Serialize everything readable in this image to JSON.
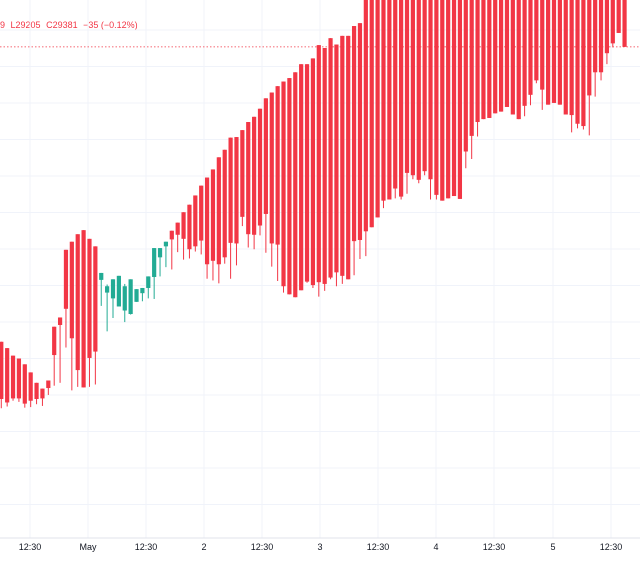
{
  "chart_data": {
    "type": "candlestick",
    "legend": {
      "open_partial": "9",
      "low": "L29205",
      "close": "C29381",
      "change": "−35 (−0.12%)"
    },
    "x_ticks": [
      "12:30",
      "May",
      "12:30",
      "2",
      "12:30",
      "3",
      "12:30",
      "4",
      "12:30",
      "5",
      "12:30"
    ],
    "last_price_line_visible": true,
    "grid": true,
    "colors": {
      "up": "#22ab94",
      "down": "#f23645",
      "grid": "#f0f3fa",
      "price_line": "#f23645"
    },
    "candles": [
      [
        295,
        212,
        209,
        215
      ],
      [
        309,
        208,
        194,
        210
      ],
      [
        298,
        203,
        197,
        204
      ],
      [
        285,
        209,
        207,
        211
      ],
      [
        280,
        206,
        205,
        211
      ],
      [
        270,
        198,
        195,
        202
      ],
      [
        256,
        209,
        196,
        207
      ],
      [
        238,
        210,
        201,
        210
      ],
      [
        228,
        213,
        198,
        211
      ],
      [
        242,
        228,
        217,
        229
      ],
      [
        335,
        277,
        233,
        286
      ],
      [
        351,
        325,
        238,
        338
      ],
      [
        468,
        390,
        299,
        366
      ],
      [
        482,
        347,
        225,
        315
      ],
      [
        495,
        251,
        231,
        260
      ],
      [
        502,
        235,
        237,
        230
      ],
      [
        487,
        273,
        231,
        281
      ],
      [
        474,
        278,
        235,
        292
      ],
      [
        416,
        411,
        371,
        428
      ],
      [
        394,
        408,
        327,
        405
      ],
      [
        384,
        413,
        350,
        417
      ],
      [
        370,
        403,
        371,
        423
      ],
      [
        363,
        409,
        343,
        405
      ],
      [
        357,
        410,
        356,
        417
      ],
      [
        378,
        394,
        383,
        400
      ],
      [
        393,
        389,
        379,
        402
      ],
      [
        402,
        413,
        384,
        422
      ],
      [
        421,
        455,
        383,
        471
      ],
      [
        455,
        447,
        422,
        471
      ],
      [
        474,
        469,
        438,
        482
      ],
      [
        501,
        480,
        434,
        486
      ],
      [
        515,
        484,
        464,
        494
      ],
      [
        533,
        482,
        451,
        487
      ],
      [
        546,
        458,
        453,
        469
      ],
      [
        562,
        466,
        465,
        474
      ],
      [
        579,
        476,
        460,
        484
      ],
      [
        593,
        470,
        418,
        443
      ],
      [
        607,
        441,
        415,
        449
      ],
      [
        628,
        428,
        410,
        443
      ],
      [
        641,
        438,
        444,
        455
      ],
      [
        662,
        474,
        418,
        480
      ],
      [
        663,
        475,
        441,
        479
      ],
      [
        675,
        498,
        509,
        525
      ],
      [
        689,
        500,
        472,
        495
      ],
      [
        698,
        492,
        469,
        494
      ],
      [
        712,
        496,
        493,
        510
      ],
      [
        730,
        499,
        463,
        530
      ],
      [
        740,
        488,
        439,
        479
      ],
      [
        751,
        459,
        414,
        477
      ],
      [
        759,
        410,
        394,
        405
      ],
      [
        765,
        391,
        392,
        391
      ],
      [
        775,
        389,
        397,
        386
      ],
      [
        789,
        395,
        406,
        398
      ],
      [
        789,
        414,
        411,
        413
      ],
      [
        799,
        413,
        402,
        407
      ],
      [
        822,
        400,
        387,
        412
      ],
      [
        817,
        402,
        397,
        409
      ],
      [
        834,
        414,
        417,
        420
      ],
      [
        823,
        405,
        405,
        429
      ],
      [
        838,
        407,
        409,
        423
      ],
      [
        838,
        421,
        447,
        417
      ],
      [
        855,
        470,
        424,
        483
      ],
      [
        860,
        469,
        452,
        485
      ],
      [
        900,
        500,
        457,
        500
      ],
      [
        1009,
        534,
        535,
        507
      ],
      [
        1029,
        535,
        549,
        524
      ],
      [
        1021,
        547,
        540,
        553
      ],
      [
        1010,
        548,
        561,
        555
      ],
      [
        1038,
        554,
        557,
        574
      ],
      [
        1046,
        567,
        555,
        560
      ],
      [
        1035,
        589,
        565,
        601
      ],
      [
        1034,
        589,
        590,
        597
      ],
      [
        1045,
        597,
        583,
        589
      ],
      [
        1066,
        598,
        597,
        604
      ],
      [
        1096,
        576,
        555,
        590
      ],
      [
        1109,
        563,
        555,
        563
      ],
      [
        1121,
        565,
        578,
        553
      ],
      [
        1133,
        569,
        565,
        557
      ],
      [
        1141,
        606,
        602,
        561
      ],
      [
        1160,
        603,
        611,
        556
      ],
      [
        1143,
        626,
        609,
        638
      ],
      [
        1156,
        658,
        625,
        665
      ],
      [
        1202,
        691,
        664,
        689
      ],
      [
        1224,
        702,
        698,
        694
      ],
      [
        1221,
        717,
        697,
        696
      ],
      [
        1224,
        705,
        716,
        704
      ],
      [
        1245,
        706,
        734,
        707
      ],
      [
        1227,
        727,
        718,
        715
      ],
      [
        1221,
        702,
        710,
        702
      ],
      [
        1213,
        703,
        706,
        694
      ],
      [
        1226,
        692,
        699,
        717
      ],
      [
        1251,
        739,
        718,
        736
      ],
      [
        1262,
        762,
        756,
        761
      ],
      [
        1270,
        747,
        710,
        745
      ],
      [
        1274,
        730,
        742,
        719
      ],
      [
        1238,
        739,
        730,
        722
      ],
      [
        1216,
        735,
        733,
        719
      ],
      [
        1205,
        723,
        712,
        702
      ],
      [
        1176,
        696,
        671,
        701
      ],
      [
        1167,
        683,
        678,
        686
      ],
      [
        1174,
        670,
        676,
        682
      ],
      [
        1210,
        726,
        666,
        735
      ],
      [
        1254,
        766,
        733,
        775
      ],
      [
        1280,
        767,
        761,
        775
      ],
      [
        1298,
        803,
        789,
        808
      ],
      [
        1321,
        823,
        818,
        825
      ],
      [
        1323,
        839,
        853,
        843
      ],
      [
        1314,
        833,
        835,
        819
      ]
    ]
  }
}
